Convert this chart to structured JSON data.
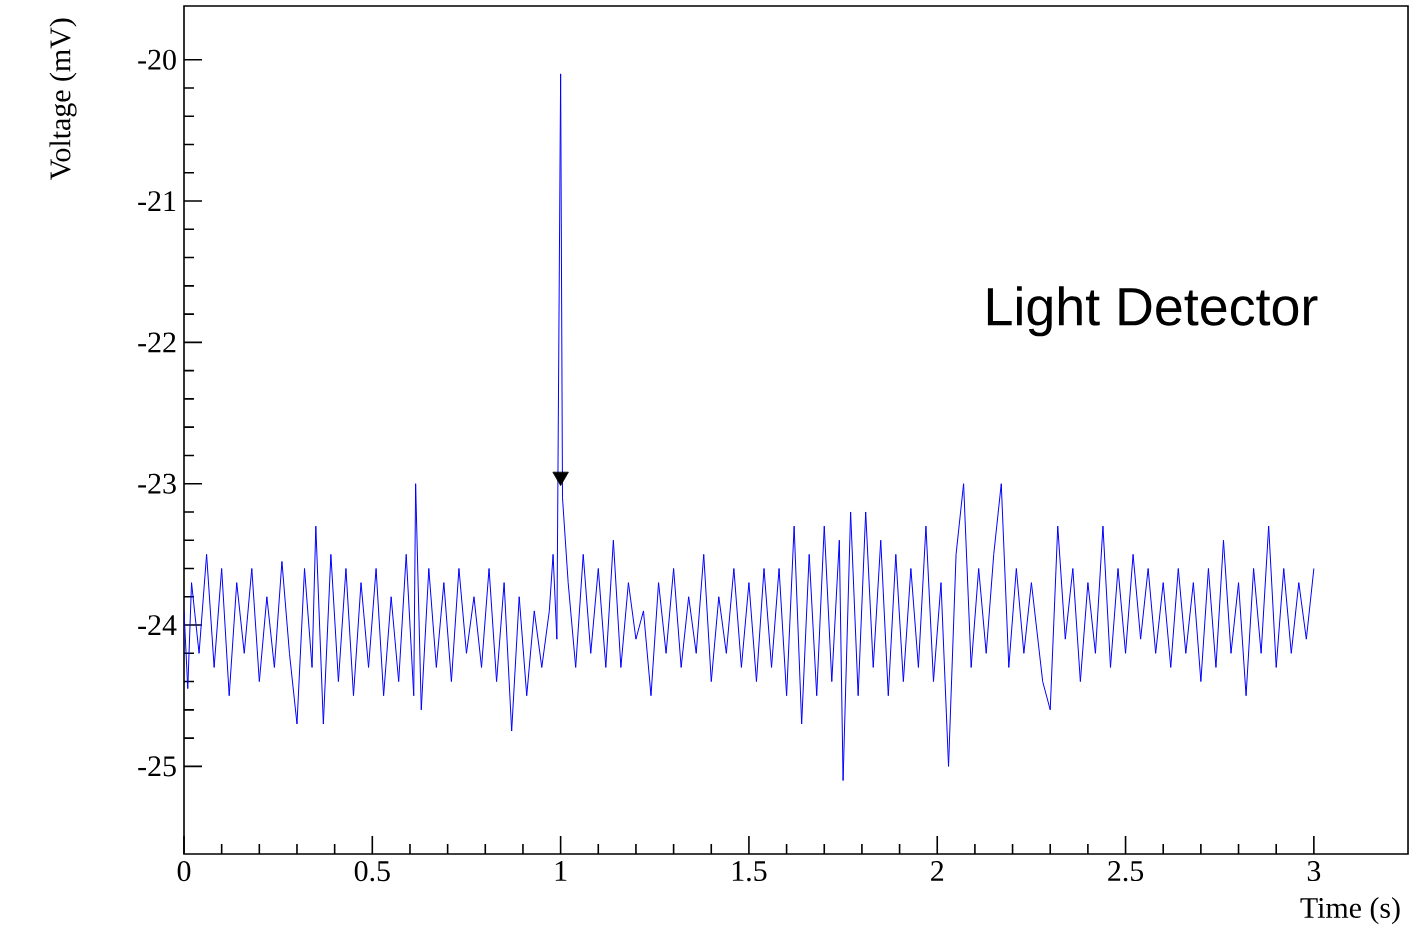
{
  "chart_data": {
    "type": "line",
    "xlabel": "Time (s)",
    "ylabel": "Voltage (mV)",
    "annotations": [
      "Light Detector"
    ],
    "xlim": [
      0,
      3.25
    ],
    "ylim": [
      -25.62,
      -19.62
    ],
    "xticks": [
      0,
      0.5,
      1,
      1.5,
      2,
      2.5,
      3
    ],
    "yticks": [
      -25,
      -24,
      -23,
      -22,
      -21,
      -20
    ],
    "marker": "none",
    "series": [
      {
        "color": "#0000ff",
        "line_style": "solid",
        "x": [
          0.0,
          0.01,
          0.02,
          0.04,
          0.06,
          0.08,
          0.1,
          0.12,
          0.14,
          0.16,
          0.18,
          0.2,
          0.22,
          0.24,
          0.26,
          0.28,
          0.3,
          0.32,
          0.34,
          0.35,
          0.37,
          0.39,
          0.41,
          0.43,
          0.45,
          0.47,
          0.49,
          0.51,
          0.53,
          0.55,
          0.57,
          0.59,
          0.61,
          0.615,
          0.63,
          0.65,
          0.67,
          0.69,
          0.71,
          0.73,
          0.75,
          0.77,
          0.79,
          0.81,
          0.83,
          0.85,
          0.87,
          0.89,
          0.91,
          0.93,
          0.95,
          0.97,
          0.98,
          0.99,
          1.0,
          1.005,
          1.02,
          1.04,
          1.06,
          1.08,
          1.1,
          1.12,
          1.14,
          1.16,
          1.18,
          1.2,
          1.22,
          1.24,
          1.26,
          1.28,
          1.3,
          1.32,
          1.34,
          1.36,
          1.38,
          1.4,
          1.42,
          1.44,
          1.46,
          1.48,
          1.5,
          1.52,
          1.54,
          1.56,
          1.58,
          1.6,
          1.62,
          1.64,
          1.66,
          1.68,
          1.7,
          1.72,
          1.74,
          1.75,
          1.77,
          1.79,
          1.81,
          1.83,
          1.85,
          1.87,
          1.89,
          1.91,
          1.93,
          1.95,
          1.97,
          1.99,
          2.01,
          2.03,
          2.05,
          2.07,
          2.09,
          2.11,
          2.13,
          2.15,
          2.17,
          2.19,
          2.21,
          2.23,
          2.25,
          2.28,
          2.3,
          2.32,
          2.34,
          2.36,
          2.38,
          2.4,
          2.42,
          2.44,
          2.46,
          2.48,
          2.5,
          2.52,
          2.54,
          2.56,
          2.58,
          2.6,
          2.62,
          2.64,
          2.66,
          2.68,
          2.7,
          2.72,
          2.74,
          2.76,
          2.78,
          2.8,
          2.82,
          2.84,
          2.86,
          2.88,
          2.9,
          2.92,
          2.94,
          2.96,
          2.98,
          3.0
        ],
        "values": [
          -23.9,
          -24.45,
          -23.7,
          -24.2,
          -23.5,
          -24.3,
          -23.6,
          -24.5,
          -23.7,
          -24.2,
          -23.6,
          -24.4,
          -23.8,
          -24.3,
          -23.55,
          -24.2,
          -24.7,
          -23.6,
          -24.3,
          -23.3,
          -24.7,
          -23.5,
          -24.4,
          -23.6,
          -24.5,
          -23.7,
          -24.3,
          -23.6,
          -24.5,
          -23.8,
          -24.4,
          -23.5,
          -24.5,
          -23.0,
          -24.6,
          -23.6,
          -24.3,
          -23.7,
          -24.4,
          -23.6,
          -24.2,
          -23.8,
          -24.3,
          -23.6,
          -24.4,
          -23.7,
          -24.75,
          -23.8,
          -24.5,
          -23.9,
          -24.3,
          -23.9,
          -23.5,
          -24.1,
          -20.1,
          -23.1,
          -23.7,
          -24.3,
          -23.5,
          -24.2,
          -23.6,
          -24.3,
          -23.4,
          -24.3,
          -23.7,
          -24.1,
          -23.9,
          -24.5,
          -23.7,
          -24.2,
          -23.6,
          -24.3,
          -23.8,
          -24.2,
          -23.5,
          -24.4,
          -23.8,
          -24.2,
          -23.6,
          -24.3,
          -23.7,
          -24.4,
          -23.6,
          -24.3,
          -23.6,
          -24.5,
          -23.3,
          -24.7,
          -23.5,
          -24.5,
          -23.3,
          -24.4,
          -23.4,
          -25.1,
          -23.2,
          -24.5,
          -23.2,
          -24.3,
          -23.4,
          -24.5,
          -23.5,
          -24.4,
          -23.6,
          -24.3,
          -23.3,
          -24.4,
          -23.7,
          -25.0,
          -23.5,
          -23.0,
          -24.3,
          -23.6,
          -24.2,
          -23.5,
          -23.0,
          -24.3,
          -23.6,
          -24.2,
          -23.7,
          -24.4,
          -24.6,
          -23.3,
          -24.1,
          -23.6,
          -24.4,
          -23.7,
          -24.2,
          -23.3,
          -24.3,
          -23.6,
          -24.2,
          -23.5,
          -24.1,
          -23.6,
          -24.2,
          -23.7,
          -24.3,
          -23.6,
          -24.2,
          -23.7,
          -24.4,
          -23.6,
          -24.3,
          -23.4,
          -24.2,
          -23.7,
          -24.5,
          -23.6,
          -24.2,
          -23.3,
          -24.3,
          -23.6,
          -24.2,
          -23.7,
          -24.1,
          -23.6
        ]
      },
      {
        "type": "scatter",
        "color": "#000000",
        "marker": "triangle",
        "x": [
          1.0
        ],
        "values": [
          -22.95
        ]
      }
    ]
  }
}
